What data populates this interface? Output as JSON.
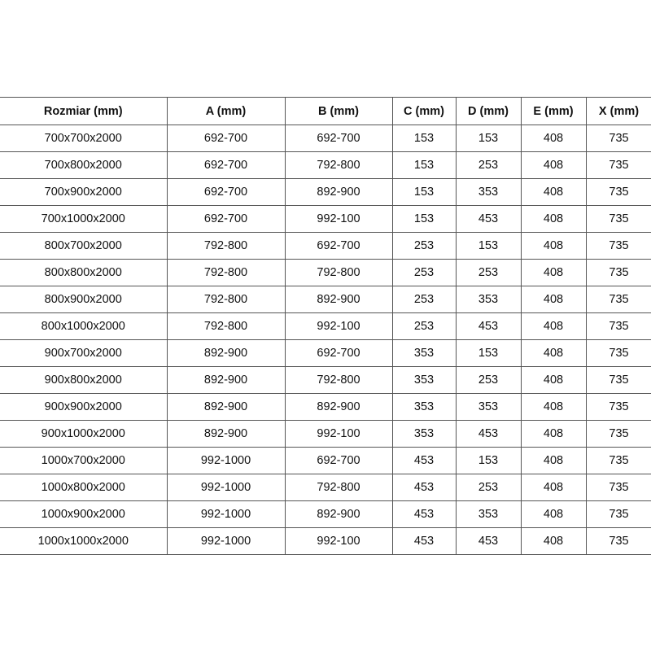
{
  "table": {
    "headers": [
      "Rozmiar (mm)",
      "A (mm)",
      "B (mm)",
      "C (mm)",
      "D (mm)",
      "E (mm)",
      "X (mm)"
    ],
    "rows": [
      [
        "700x700x2000",
        "692-700",
        "692-700",
        "153",
        "153",
        "408",
        "735"
      ],
      [
        "700x800x2000",
        "692-700",
        "792-800",
        "153",
        "253",
        "408",
        "735"
      ],
      [
        "700x900x2000",
        "692-700",
        "892-900",
        "153",
        "353",
        "408",
        "735"
      ],
      [
        "700x1000x2000",
        "692-700",
        "992-100",
        "153",
        "453",
        "408",
        "735"
      ],
      [
        "800x700x2000",
        "792-800",
        "692-700",
        "253",
        "153",
        "408",
        "735"
      ],
      [
        "800x800x2000",
        "792-800",
        "792-800",
        "253",
        "253",
        "408",
        "735"
      ],
      [
        "800x900x2000",
        "792-800",
        "892-900",
        "253",
        "353",
        "408",
        "735"
      ],
      [
        "800x1000x2000",
        "792-800",
        "992-100",
        "253",
        "453",
        "408",
        "735"
      ],
      [
        "900x700x2000",
        "892-900",
        "692-700",
        "353",
        "153",
        "408",
        "735"
      ],
      [
        "900x800x2000",
        "892-900",
        "792-800",
        "353",
        "253",
        "408",
        "735"
      ],
      [
        "900x900x2000",
        "892-900",
        "892-900",
        "353",
        "353",
        "408",
        "735"
      ],
      [
        "900x1000x2000",
        "892-900",
        "992-100",
        "353",
        "453",
        "408",
        "735"
      ],
      [
        "1000x700x2000",
        "992-1000",
        "692-700",
        "453",
        "153",
        "408",
        "735"
      ],
      [
        "1000x800x2000",
        "992-1000",
        "792-800",
        "453",
        "253",
        "408",
        "735"
      ],
      [
        "1000x900x2000",
        "992-1000",
        "892-900",
        "453",
        "353",
        "408",
        "735"
      ],
      [
        "1000x1000x2000",
        "992-1000",
        "992-100",
        "453",
        "453",
        "408",
        "735"
      ]
    ]
  }
}
